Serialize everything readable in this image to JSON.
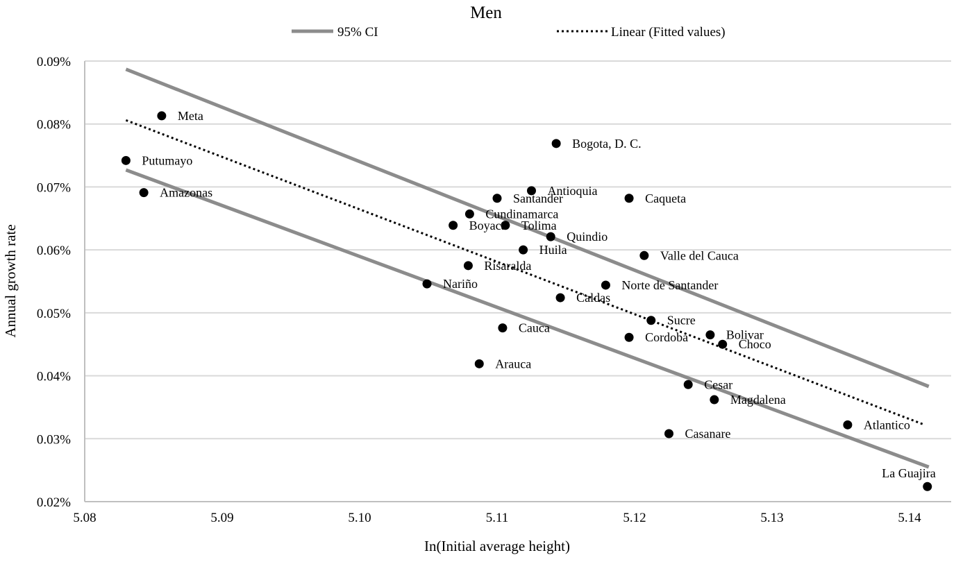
{
  "chart_data": {
    "type": "scatter",
    "title": "Men",
    "xlabel": "In(Initial average height)",
    "ylabel": "Annual growth rate",
    "xlim": [
      5.08,
      5.14
    ],
    "ylim": [
      0.02,
      0.09
    ],
    "x_ticks": [
      "5.08",
      "5.09",
      "5.10",
      "5.11",
      "5.12",
      "5.13",
      "5.14"
    ],
    "y_ticks": [
      "0.02%",
      "0.03%",
      "0.04%",
      "0.05%",
      "0.06%",
      "0.07%",
      "0.08%",
      "0.09%"
    ],
    "grid": "horizontal",
    "legend_position": "top",
    "legend": [
      {
        "label": "95% CI",
        "style": "solid",
        "color": "#8c8c8c"
      },
      {
        "label": "Linear (Fitted values)",
        "style": "dotted",
        "color": "#000000"
      }
    ],
    "points": [
      {
        "label": "Meta",
        "x": 5.0856,
        "y": 0.0813
      },
      {
        "label": "Putumayo",
        "x": 5.083,
        "y": 0.0742
      },
      {
        "label": "Amazonas",
        "x": 5.0843,
        "y": 0.0691
      },
      {
        "label": "Bogota, D. C.",
        "x": 5.1143,
        "y": 0.0769
      },
      {
        "label": "Antioquia",
        "x": 5.1125,
        "y": 0.0694
      },
      {
        "label": "Santander",
        "x": 5.11,
        "y": 0.0682
      },
      {
        "label": "Caqueta",
        "x": 5.1196,
        "y": 0.0682
      },
      {
        "label": "Cundinamarca",
        "x": 5.108,
        "y": 0.0657
      },
      {
        "label": "Boyaca",
        "x": 5.1068,
        "y": 0.0639
      },
      {
        "label": "Tolima",
        "x": 5.1106,
        "y": 0.0639
      },
      {
        "label": "Quindio",
        "x": 5.1139,
        "y": 0.0621
      },
      {
        "label": "Huila",
        "x": 5.1119,
        "y": 0.06
      },
      {
        "label": "Valle del Cauca",
        "x": 5.1207,
        "y": 0.0591
      },
      {
        "label": "Risaralda",
        "x": 5.1079,
        "y": 0.0575
      },
      {
        "label": "Norte de Santander",
        "x": 5.1179,
        "y": 0.0544
      },
      {
        "label": "Nariño",
        "x": 5.1049,
        "y": 0.0546
      },
      {
        "label": "Caldas",
        "x": 5.1146,
        "y": 0.0524
      },
      {
        "label": "Sucre",
        "x": 5.1212,
        "y": 0.0488
      },
      {
        "label": "Bolivar",
        "x": 5.1255,
        "y": 0.0465
      },
      {
        "label": "Cordoba",
        "x": 5.1196,
        "y": 0.0461
      },
      {
        "label": "Choco",
        "x": 5.1264,
        "y": 0.045
      },
      {
        "label": "Cauca",
        "x": 5.1104,
        "y": 0.0476
      },
      {
        "label": "Arauca",
        "x": 5.1087,
        "y": 0.0419
      },
      {
        "label": "Cesar",
        "x": 5.1239,
        "y": 0.0386
      },
      {
        "label": "Magdalena",
        "x": 5.1258,
        "y": 0.0362
      },
      {
        "label": "Casanare",
        "x": 5.1225,
        "y": 0.0308
      },
      {
        "label": "Atlantico",
        "x": 5.1355,
        "y": 0.0322
      },
      {
        "label": "La Guajira",
        "x": 5.1413,
        "y": 0.0224
      }
    ],
    "fitted_line": [
      [
        5.083,
        0.0806
      ],
      [
        5.1411,
        0.0322
      ]
    ],
    "ci_upper": [
      [
        5.083,
        0.0887
      ],
      [
        5.1414,
        0.0383
      ]
    ],
    "ci_lower": [
      [
        5.083,
        0.0727
      ],
      [
        5.1414,
        0.0255
      ]
    ]
  }
}
